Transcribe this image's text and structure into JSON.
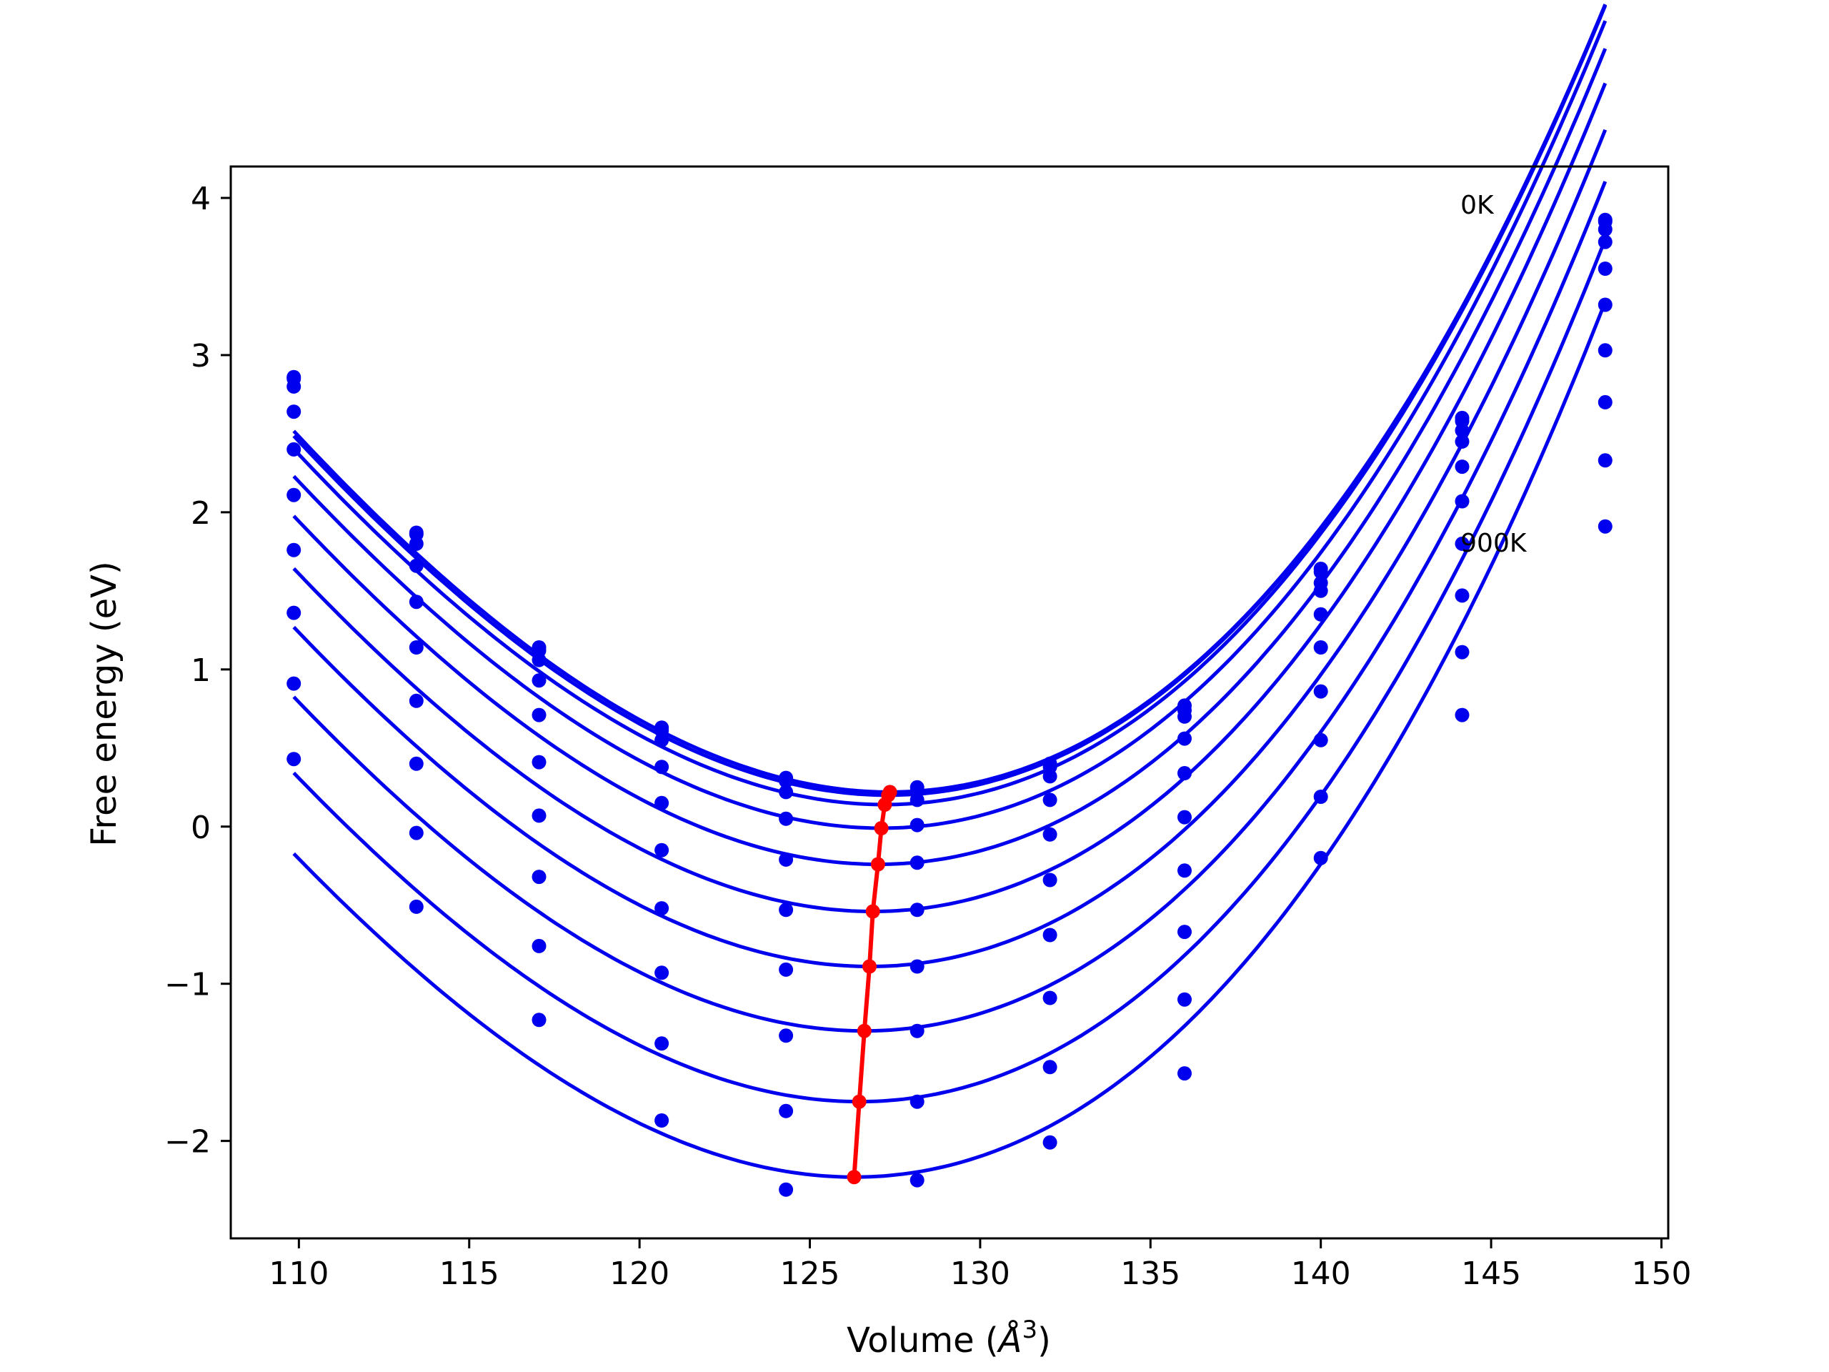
{
  "chart_data": {
    "type": "line",
    "title": "",
    "xlabel": "Volume (",
    "xlabel_symbol": "Å",
    "xlabel_exp": "3",
    "xlabel_close": ")",
    "ylabel": "Free energy (eV)",
    "xlim": [
      108,
      150.2
    ],
    "ylim": [
      -2.62,
      4.2
    ],
    "xticks": [
      110,
      115,
      120,
      125,
      130,
      135,
      140,
      145,
      150
    ],
    "yticks": [
      -2,
      -1,
      0,
      1,
      2,
      3,
      4
    ],
    "ytick_labels": [
      "−2",
      "−1",
      "0",
      "1",
      "2",
      "3",
      "4"
    ],
    "grid": false,
    "legend": "none",
    "annotations": [
      {
        "text": "0K",
        "x": 144.1,
        "y": 3.9
      },
      {
        "text": "900K",
        "x": 144.1,
        "y": 1.75
      }
    ],
    "colors": {
      "series": "#0000ee",
      "minima": "#ff0000",
      "axes": "#000000"
    },
    "x": [
      109.85,
      113.45,
      117.05,
      120.65,
      124.3,
      128.15,
      132.05,
      136.0,
      140.0,
      144.15,
      148.35
    ],
    "series": [
      {
        "values": [
          2.86,
          1.87,
          1.14,
          0.63,
          0.31,
          0.25,
          0.4,
          0.77,
          1.64,
          2.6,
          3.86
        ],
        "fit": {
          "vmin": 127.35,
          "fmin": 0.22,
          "a": 0.00925,
          "b": 0.0001
        }
      },
      {
        "values": [
          2.85,
          1.86,
          1.12,
          0.61,
          0.29,
          0.23,
          0.38,
          0.74,
          1.62,
          2.58,
          3.85
        ],
        "fit": {
          "vmin": 127.3,
          "fmin": 0.2,
          "a": 0.00925,
          "b": 0.0001
        }
      },
      {
        "values": [
          2.8,
          1.8,
          1.06,
          0.55,
          0.22,
          0.17,
          0.32,
          0.7,
          1.55,
          2.52,
          3.8
        ],
        "fit": {
          "vmin": 127.2,
          "fmin": 0.14,
          "a": 0.00925,
          "b": 0.0001
        }
      },
      {
        "values": [
          2.64,
          1.66,
          0.93,
          0.38,
          0.05,
          0.01,
          0.17,
          0.56,
          1.5,
          2.45,
          3.72
        ],
        "fit": {
          "vmin": 127.1,
          "fmin": -0.01,
          "a": 0.00925,
          "b": 0.0001
        }
      },
      {
        "values": [
          2.4,
          1.43,
          0.71,
          0.15,
          -0.21,
          -0.23,
          -0.05,
          0.34,
          1.35,
          2.29,
          3.55
        ],
        "fit": {
          "vmin": 127.0,
          "fmin": -0.24,
          "a": 0.00925,
          "b": 0.0001
        }
      },
      {
        "values": [
          2.11,
          1.14,
          0.41,
          -0.15,
          -0.53,
          -0.53,
          -0.34,
          0.06,
          1.14,
          2.07,
          3.32
        ],
        "fit": {
          "vmin": 126.85,
          "fmin": -0.54,
          "a": 0.00925,
          "b": 0.0001
        }
      },
      {
        "values": [
          1.76,
          0.8,
          0.07,
          -0.52,
          -0.91,
          -0.89,
          -0.69,
          -0.28,
          0.86,
          1.8,
          3.03
        ],
        "fit": {
          "vmin": 126.75,
          "fmin": -0.89,
          "a": 0.00925,
          "b": 0.0001
        }
      },
      {
        "values": [
          1.36,
          0.4,
          -0.32,
          -0.93,
          -1.33,
          -1.3,
          -1.09,
          -0.67,
          0.55,
          1.47,
          2.7
        ],
        "fit": {
          "vmin": 126.6,
          "fmin": -1.3,
          "a": 0.00925,
          "b": 0.0001
        }
      },
      {
        "values": [
          0.91,
          -0.04,
          -0.76,
          -1.38,
          -1.81,
          -1.75,
          -1.53,
          -1.1,
          0.19,
          1.11,
          2.33
        ],
        "fit": {
          "vmin": 126.45,
          "fmin": -1.75,
          "a": 0.00925,
          "b": 0.0001
        }
      },
      {
        "values": [
          0.43,
          -0.51,
          -1.23,
          -1.87,
          -2.31,
          -2.25,
          -2.01,
          -1.57,
          -0.2,
          0.71,
          1.91
        ],
        "fit": {
          "vmin": 126.3,
          "fmin": -2.23,
          "a": 0.00925,
          "b": 0.0001
        }
      }
    ],
    "minima": {
      "x": [
        127.35,
        127.3,
        127.2,
        127.1,
        127.0,
        126.85,
        126.75,
        126.6,
        126.45,
        126.3
      ],
      "y": [
        0.22,
        0.2,
        0.14,
        -0.01,
        -0.24,
        -0.54,
        -0.89,
        -1.3,
        -1.75,
        -2.23
      ]
    }
  }
}
